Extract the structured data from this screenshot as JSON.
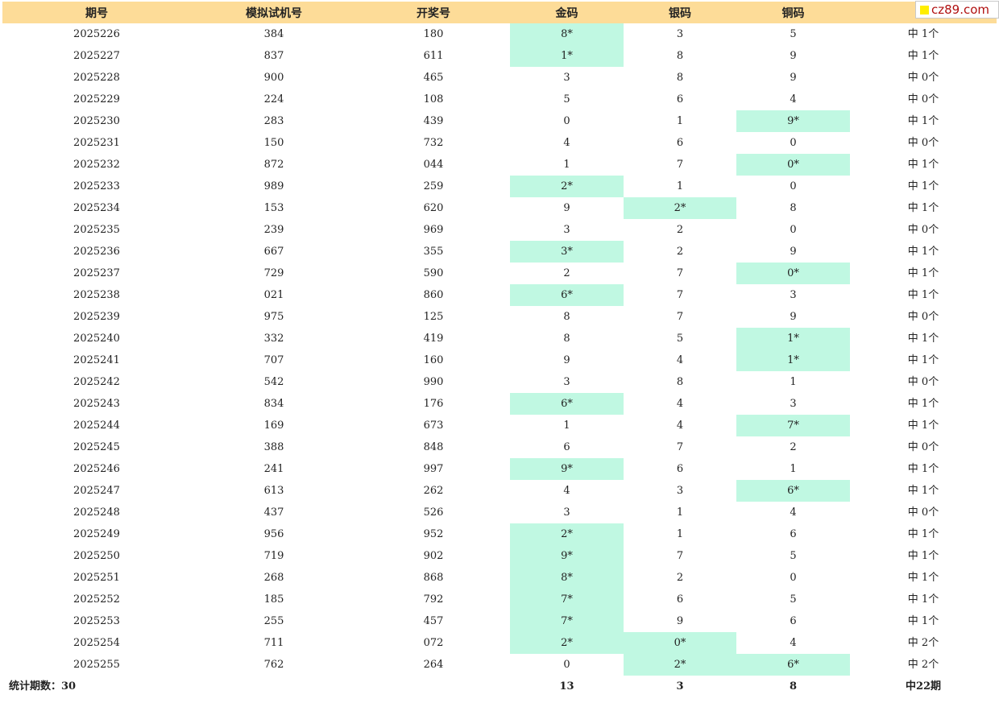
{
  "headers": [
    "期号",
    "模拟试机号",
    "开奖号",
    "金码",
    "银码",
    "铜码",
    "中"
  ],
  "watermark": "cz89.com",
  "colors": {
    "header_bg": "#fddc98",
    "hit_bg": "#c0f8e2"
  },
  "rows": [
    {
      "period": "2025226",
      "sim": "384",
      "draw": "180",
      "gold": {
        "v": "8*",
        "hit": true
      },
      "silver": {
        "v": "3",
        "hit": false
      },
      "copper": {
        "v": "5",
        "hit": false
      },
      "result": "中 1个"
    },
    {
      "period": "2025227",
      "sim": "837",
      "draw": "611",
      "gold": {
        "v": "1*",
        "hit": true
      },
      "silver": {
        "v": "8",
        "hit": false
      },
      "copper": {
        "v": "9",
        "hit": false
      },
      "result": "中 1个"
    },
    {
      "period": "2025228",
      "sim": "900",
      "draw": "465",
      "gold": {
        "v": "3",
        "hit": false
      },
      "silver": {
        "v": "8",
        "hit": false
      },
      "copper": {
        "v": "9",
        "hit": false
      },
      "result": "中 0个"
    },
    {
      "period": "2025229",
      "sim": "224",
      "draw": "108",
      "gold": {
        "v": "5",
        "hit": false
      },
      "silver": {
        "v": "6",
        "hit": false
      },
      "copper": {
        "v": "4",
        "hit": false
      },
      "result": "中 0个"
    },
    {
      "period": "2025230",
      "sim": "283",
      "draw": "439",
      "gold": {
        "v": "0",
        "hit": false
      },
      "silver": {
        "v": "1",
        "hit": false
      },
      "copper": {
        "v": "9*",
        "hit": true
      },
      "result": "中 1个"
    },
    {
      "period": "2025231",
      "sim": "150",
      "draw": "732",
      "gold": {
        "v": "4",
        "hit": false
      },
      "silver": {
        "v": "6",
        "hit": false
      },
      "copper": {
        "v": "0",
        "hit": false
      },
      "result": "中 0个"
    },
    {
      "period": "2025232",
      "sim": "872",
      "draw": "044",
      "gold": {
        "v": "1",
        "hit": false
      },
      "silver": {
        "v": "7",
        "hit": false
      },
      "copper": {
        "v": "0*",
        "hit": true
      },
      "result": "中 1个"
    },
    {
      "period": "2025233",
      "sim": "989",
      "draw": "259",
      "gold": {
        "v": "2*",
        "hit": true
      },
      "silver": {
        "v": "1",
        "hit": false
      },
      "copper": {
        "v": "0",
        "hit": false
      },
      "result": "中 1个"
    },
    {
      "period": "2025234",
      "sim": "153",
      "draw": "620",
      "gold": {
        "v": "9",
        "hit": false
      },
      "silver": {
        "v": "2*",
        "hit": true
      },
      "copper": {
        "v": "8",
        "hit": false
      },
      "result": "中 1个"
    },
    {
      "period": "2025235",
      "sim": "239",
      "draw": "969",
      "gold": {
        "v": "3",
        "hit": false
      },
      "silver": {
        "v": "2",
        "hit": false
      },
      "copper": {
        "v": "0",
        "hit": false
      },
      "result": "中 0个"
    },
    {
      "period": "2025236",
      "sim": "667",
      "draw": "355",
      "gold": {
        "v": "3*",
        "hit": true
      },
      "silver": {
        "v": "2",
        "hit": false
      },
      "copper": {
        "v": "9",
        "hit": false
      },
      "result": "中 1个"
    },
    {
      "period": "2025237",
      "sim": "729",
      "draw": "590",
      "gold": {
        "v": "2",
        "hit": false
      },
      "silver": {
        "v": "7",
        "hit": false
      },
      "copper": {
        "v": "0*",
        "hit": true
      },
      "result": "中 1个"
    },
    {
      "period": "2025238",
      "sim": "021",
      "draw": "860",
      "gold": {
        "v": "6*",
        "hit": true
      },
      "silver": {
        "v": "7",
        "hit": false
      },
      "copper": {
        "v": "3",
        "hit": false
      },
      "result": "中 1个"
    },
    {
      "period": "2025239",
      "sim": "975",
      "draw": "125",
      "gold": {
        "v": "8",
        "hit": false
      },
      "silver": {
        "v": "7",
        "hit": false
      },
      "copper": {
        "v": "9",
        "hit": false
      },
      "result": "中 0个"
    },
    {
      "period": "2025240",
      "sim": "332",
      "draw": "419",
      "gold": {
        "v": "8",
        "hit": false
      },
      "silver": {
        "v": "5",
        "hit": false
      },
      "copper": {
        "v": "1*",
        "hit": true
      },
      "result": "中 1个"
    },
    {
      "period": "2025241",
      "sim": "707",
      "draw": "160",
      "gold": {
        "v": "9",
        "hit": false
      },
      "silver": {
        "v": "4",
        "hit": false
      },
      "copper": {
        "v": "1*",
        "hit": true
      },
      "result": "中 1个"
    },
    {
      "period": "2025242",
      "sim": "542",
      "draw": "990",
      "gold": {
        "v": "3",
        "hit": false
      },
      "silver": {
        "v": "8",
        "hit": false
      },
      "copper": {
        "v": "1",
        "hit": false
      },
      "result": "中 0个"
    },
    {
      "period": "2025243",
      "sim": "834",
      "draw": "176",
      "gold": {
        "v": "6*",
        "hit": true
      },
      "silver": {
        "v": "4",
        "hit": false
      },
      "copper": {
        "v": "3",
        "hit": false
      },
      "result": "中 1个"
    },
    {
      "period": "2025244",
      "sim": "169",
      "draw": "673",
      "gold": {
        "v": "1",
        "hit": false
      },
      "silver": {
        "v": "4",
        "hit": false
      },
      "copper": {
        "v": "7*",
        "hit": true
      },
      "result": "中 1个"
    },
    {
      "period": "2025245",
      "sim": "388",
      "draw": "848",
      "gold": {
        "v": "6",
        "hit": false
      },
      "silver": {
        "v": "7",
        "hit": false
      },
      "copper": {
        "v": "2",
        "hit": false
      },
      "result": "中 0个"
    },
    {
      "period": "2025246",
      "sim": "241",
      "draw": "997",
      "gold": {
        "v": "9*",
        "hit": true
      },
      "silver": {
        "v": "6",
        "hit": false
      },
      "copper": {
        "v": "1",
        "hit": false
      },
      "result": "中 1个"
    },
    {
      "period": "2025247",
      "sim": "613",
      "draw": "262",
      "gold": {
        "v": "4",
        "hit": false
      },
      "silver": {
        "v": "3",
        "hit": false
      },
      "copper": {
        "v": "6*",
        "hit": true
      },
      "result": "中 1个"
    },
    {
      "period": "2025248",
      "sim": "437",
      "draw": "526",
      "gold": {
        "v": "3",
        "hit": false
      },
      "silver": {
        "v": "1",
        "hit": false
      },
      "copper": {
        "v": "4",
        "hit": false
      },
      "result": "中 0个"
    },
    {
      "period": "2025249",
      "sim": "956",
      "draw": "952",
      "gold": {
        "v": "2*",
        "hit": true
      },
      "silver": {
        "v": "1",
        "hit": false
      },
      "copper": {
        "v": "6",
        "hit": false
      },
      "result": "中 1个"
    },
    {
      "period": "2025250",
      "sim": "719",
      "draw": "902",
      "gold": {
        "v": "9*",
        "hit": true
      },
      "silver": {
        "v": "7",
        "hit": false
      },
      "copper": {
        "v": "5",
        "hit": false
      },
      "result": "中 1个"
    },
    {
      "period": "2025251",
      "sim": "268",
      "draw": "868",
      "gold": {
        "v": "8*",
        "hit": true
      },
      "silver": {
        "v": "2",
        "hit": false
      },
      "copper": {
        "v": "0",
        "hit": false
      },
      "result": "中 1个"
    },
    {
      "period": "2025252",
      "sim": "185",
      "draw": "792",
      "gold": {
        "v": "7*",
        "hit": true
      },
      "silver": {
        "v": "6",
        "hit": false
      },
      "copper": {
        "v": "5",
        "hit": false
      },
      "result": "中 1个"
    },
    {
      "period": "2025253",
      "sim": "255",
      "draw": "457",
      "gold": {
        "v": "7*",
        "hit": true
      },
      "silver": {
        "v": "9",
        "hit": false
      },
      "copper": {
        "v": "6",
        "hit": false
      },
      "result": "中 1个"
    },
    {
      "period": "2025254",
      "sim": "711",
      "draw": "072",
      "gold": {
        "v": "2*",
        "hit": true
      },
      "silver": {
        "v": "0*",
        "hit": true
      },
      "copper": {
        "v": "4",
        "hit": false
      },
      "result": "中 2个"
    },
    {
      "period": "2025255",
      "sim": "762",
      "draw": "264",
      "gold": {
        "v": "0",
        "hit": false
      },
      "silver": {
        "v": "2*",
        "hit": true
      },
      "copper": {
        "v": "6*",
        "hit": true
      },
      "result": "中 2个"
    }
  ],
  "summary": {
    "label": "统计期数：30",
    "gold": "13",
    "silver": "3",
    "copper": "8",
    "result": "中22期"
  }
}
